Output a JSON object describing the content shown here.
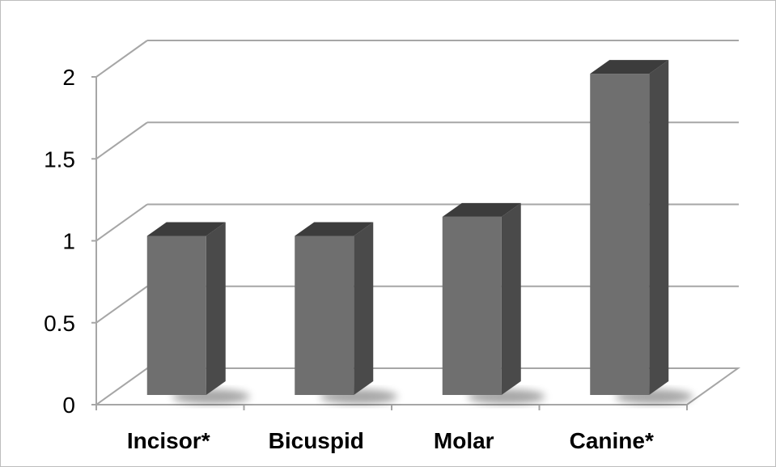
{
  "chart_data": {
    "type": "bar",
    "style": "3d-column",
    "categories": [
      "Incisor*",
      "Bicuspid",
      "Molar",
      "Canine*"
    ],
    "values": [
      1.0,
      1.0,
      1.12,
      2.02
    ],
    "yticks": [
      "0",
      "0.5",
      "1",
      "1.5",
      "2"
    ],
    "ylim": [
      0,
      2
    ],
    "grid": true,
    "legend": "none",
    "title": "",
    "xlabel": "",
    "ylabel": "",
    "colors": {
      "bar_front": "#6f6f6f",
      "bar_side": "#4a4a4a",
      "bar_top": "#3c3c3c",
      "grid": "#a6a6a6"
    }
  }
}
